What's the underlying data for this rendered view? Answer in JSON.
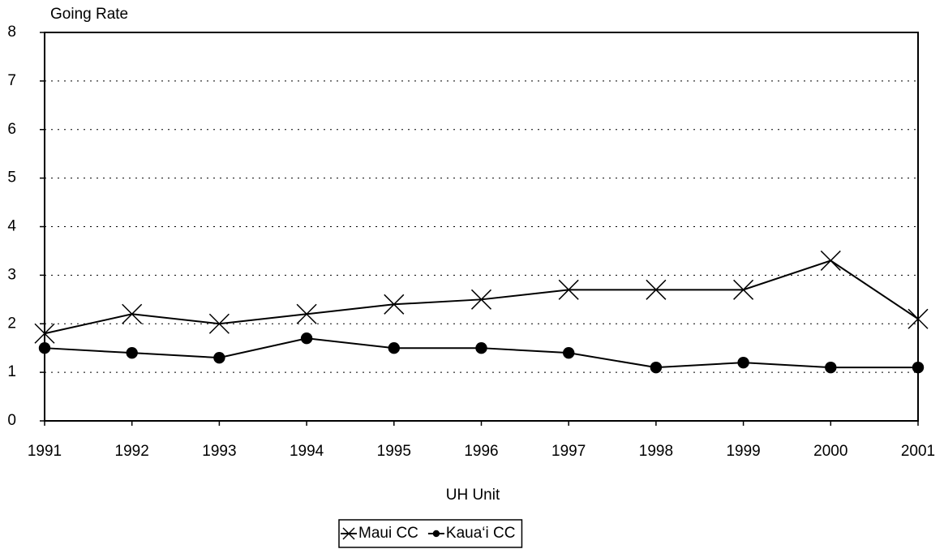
{
  "chart_data": {
    "type": "line",
    "y_label": "Going Rate",
    "x_label": "UH Unit",
    "x": [
      1991,
      1992,
      1993,
      1994,
      1995,
      1996,
      1997,
      1998,
      1999,
      2000,
      2001
    ],
    "xlim": [
      1991,
      2001
    ],
    "xticks": [
      1991,
      1992,
      1993,
      1994,
      1995,
      1996,
      1997,
      1998,
      1999,
      2000,
      2001
    ],
    "ylim": [
      0,
      8
    ],
    "yticks": [
      0,
      1,
      2,
      3,
      4,
      5,
      6,
      7,
      8
    ],
    "grid": true,
    "legend": "bottom",
    "series": [
      {
        "name": "Maui CC",
        "color": "#000000",
        "marker": "x",
        "values": [
          1.8,
          2.2,
          2.0,
          2.2,
          2.4,
          2.5,
          2.7,
          2.7,
          2.7,
          3.3,
          2.1
        ]
      },
      {
        "name": "Kaua‘i CC",
        "color": "#000000",
        "marker": "circle",
        "values": [
          1.5,
          1.4,
          1.3,
          1.7,
          1.5,
          1.5,
          1.4,
          1.1,
          1.2,
          1.1,
          1.1
        ]
      }
    ]
  }
}
